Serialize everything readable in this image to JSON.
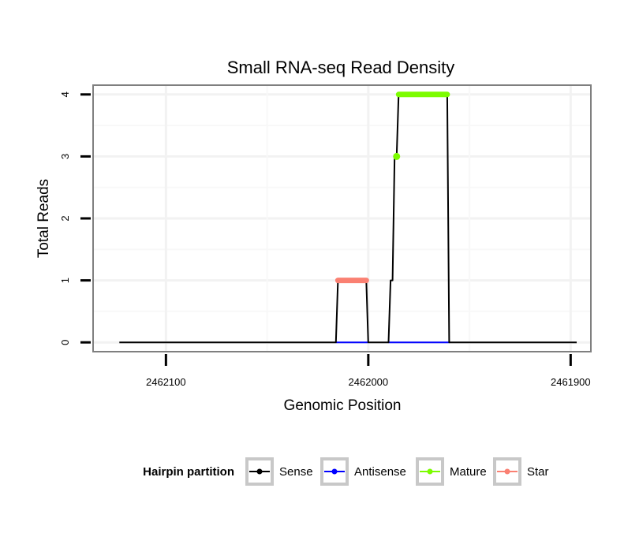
{
  "chart_data": {
    "type": "line",
    "title": "Small RNA-seq Read Density",
    "xlabel": "Genomic Position",
    "ylabel": "Total Reads",
    "x_reversed": true,
    "xlim": [
      2462136,
      2461890
    ],
    "ylim": [
      -0.15,
      4.15
    ],
    "xticks": [
      2462100,
      2462000,
      2461900
    ],
    "xtick_labels": [
      "2462100",
      "2462000",
      "2461900"
    ],
    "yticks": [
      0,
      1,
      2,
      3,
      4
    ],
    "ytick_labels": [
      "0",
      "1",
      "2",
      "3",
      "4"
    ],
    "grid": true,
    "legend": {
      "title": "Hairpin partition",
      "position": "bottom",
      "entries": [
        {
          "label": "Sense",
          "color": "#000000"
        },
        {
          "label": "Antisense",
          "color": "#0000ff"
        },
        {
          "label": "Mature",
          "color": "#7cfc00"
        },
        {
          "label": "Star",
          "color": "#fa8072"
        }
      ]
    },
    "series": [
      {
        "name": "Sense",
        "color": "#000000",
        "points": [
          [
            2462123,
            0
          ],
          [
            2462016,
            0
          ],
          [
            2462015,
            1
          ],
          [
            2462001,
            1
          ],
          [
            2462000,
            0
          ],
          [
            2461990,
            0
          ],
          [
            2461989,
            1
          ],
          [
            2461988,
            1
          ],
          [
            2461987,
            3
          ],
          [
            2461986,
            3
          ],
          [
            2461985,
            4
          ],
          [
            2461961,
            4
          ],
          [
            2461960,
            0
          ],
          [
            2461897,
            0
          ]
        ]
      },
      {
        "name": "Antisense",
        "color": "#0000ff",
        "segments": [
          [
            [
              2462016,
              0
            ],
            [
              2462000,
              0
            ]
          ],
          [
            [
              2461990,
              0
            ],
            [
              2461960,
              0
            ]
          ]
        ]
      },
      {
        "name": "Mature",
        "color": "#7cfc00",
        "points": [
          [
            2461986,
            3
          ],
          [
            2461985,
            4
          ],
          [
            2461961,
            4
          ]
        ]
      },
      {
        "name": "Star",
        "color": "#fa8072",
        "points": [
          [
            2462015,
            1
          ],
          [
            2462001,
            1
          ]
        ]
      }
    ]
  }
}
